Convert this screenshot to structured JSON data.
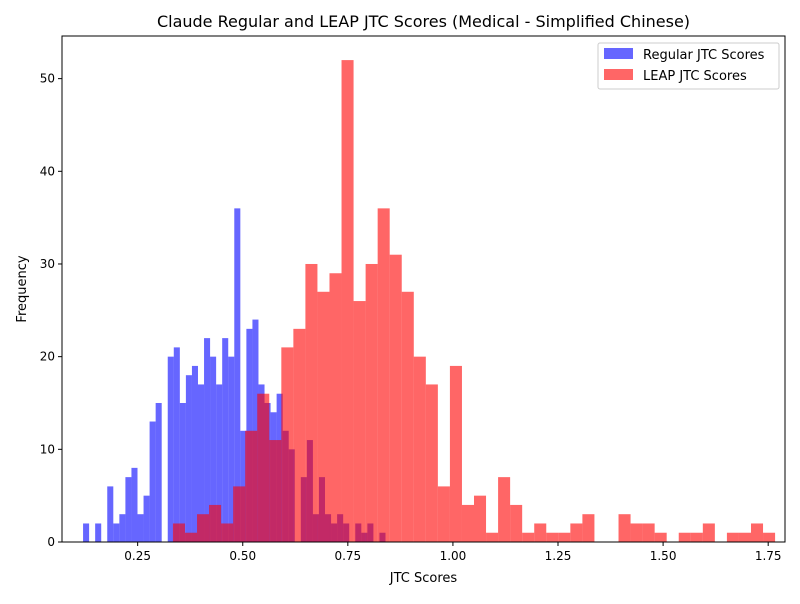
{
  "chart_data": {
    "type": "bar",
    "title": "Claude Regular and LEAP JTC Scores (Medical - Simplified Chinese)",
    "xlabel": "JTC Scores",
    "ylabel": "Frequency",
    "xlim": [
      0.07,
      1.79
    ],
    "ylim": [
      0,
      54.6
    ],
    "xticks": [
      0.25,
      0.5,
      0.75,
      1.0,
      1.25,
      1.5,
      1.75
    ],
    "xtick_labels": [
      "0.25",
      "0.50",
      "0.75",
      "1.00",
      "1.25",
      "1.50",
      "1.75"
    ],
    "yticks": [
      0,
      10,
      20,
      30,
      40,
      50
    ],
    "ytick_labels": [
      "0",
      "10",
      "20",
      "30",
      "40",
      "50"
    ],
    "legend_position": "top-right",
    "grid": false,
    "series": [
      {
        "name": "Regular JTC Scores",
        "color": "#0000ff",
        "opacity": 0.6,
        "bin_width": 0.01439,
        "bin_start": 0.1201,
        "values": [
          2,
          0,
          2,
          0,
          6,
          2,
          3,
          7,
          8,
          3,
          5,
          13,
          15,
          0,
          20,
          21,
          15,
          18,
          19,
          17,
          22,
          20,
          17,
          22,
          20,
          36,
          12,
          23,
          24,
          17,
          15,
          14,
          16,
          12,
          10,
          0,
          7,
          11,
          3,
          7,
          3,
          2,
          3,
          2,
          0,
          2,
          1,
          2,
          0,
          1
        ]
      },
      {
        "name": "LEAP JTC Scores",
        "color": "#ff0000",
        "opacity": 0.6,
        "bin_width": 0.02865,
        "bin_start": 0.3339,
        "values": [
          2,
          1,
          3,
          4,
          2,
          6,
          12,
          16,
          11,
          21,
          23,
          30,
          27,
          29,
          52,
          26,
          30,
          36,
          31,
          27,
          20,
          17,
          6,
          19,
          4,
          5,
          1,
          7,
          4,
          1,
          2,
          1,
          1,
          2,
          3,
          0,
          0,
          3,
          2,
          2,
          1,
          0,
          1,
          1,
          2,
          0,
          1,
          1,
          2,
          1
        ]
      }
    ]
  }
}
